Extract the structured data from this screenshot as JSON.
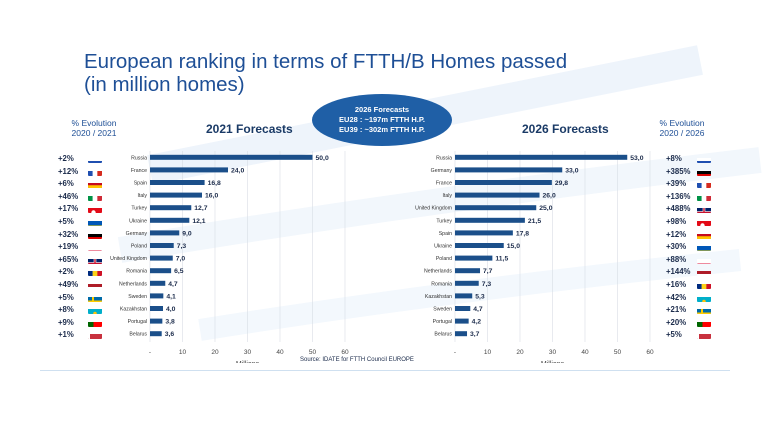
{
  "title_line1": "European ranking in terms of FTTH/B Homes passed",
  "title_line2": "(in million homes)",
  "left_evolution_header": [
    "% Evolution",
    "2020 / 2021"
  ],
  "right_evolution_header": [
    "% Evolution",
    "2020 / 2026"
  ],
  "left_chart_title": "2021 Forecasts",
  "right_chart_title": "2026 Forecasts",
  "bubble": {
    "line1": "2026 Forecasts",
    "line2": "EU28 : ~197m FTTH H.P.",
    "line3": "EU39 : ~302m FTTH H.P."
  },
  "source": "Source: IDATE for FTTH Council EUROPE",
  "left_evolution": [
    {
      "value": "+2%",
      "flag": "ru"
    },
    {
      "value": "+12%",
      "flag": "fr"
    },
    {
      "value": "+6%",
      "flag": "es"
    },
    {
      "value": "+46%",
      "flag": "it"
    },
    {
      "value": "+17%",
      "flag": "tr"
    },
    {
      "value": "+5%",
      "flag": "ua"
    },
    {
      "value": "+32%",
      "flag": "de"
    },
    {
      "value": "+19%",
      "flag": "pl"
    },
    {
      "value": "+65%",
      "flag": "gb"
    },
    {
      "value": "+2%",
      "flag": "ro"
    },
    {
      "value": "+49%",
      "flag": "nl"
    },
    {
      "value": "+5%",
      "flag": "se"
    },
    {
      "value": "+8%",
      "flag": "kz"
    },
    {
      "value": "+9%",
      "flag": "pt"
    },
    {
      "value": "+1%",
      "flag": "by"
    }
  ],
  "right_evolution": [
    {
      "value": "+8%",
      "flag": "ru"
    },
    {
      "value": "+385%",
      "flag": "de"
    },
    {
      "value": "+39%",
      "flag": "fr"
    },
    {
      "value": "+136%",
      "flag": "it"
    },
    {
      "value": "+488%",
      "flag": "gb"
    },
    {
      "value": "+98%",
      "flag": "tr"
    },
    {
      "value": "+12%",
      "flag": "es"
    },
    {
      "value": "+30%",
      "flag": "ua"
    },
    {
      "value": "+88%",
      "flag": "pl"
    },
    {
      "value": "+144%",
      "flag": "nl"
    },
    {
      "value": "+16%",
      "flag": "ro"
    },
    {
      "value": "+42%",
      "flag": "kz"
    },
    {
      "value": "+21%",
      "flag": "se"
    },
    {
      "value": "+20%",
      "flag": "pt"
    },
    {
      "value": "+5%",
      "flag": "by"
    }
  ],
  "flag_colors": {
    "ru": [
      "#ffffff",
      "#1f4fb0",
      "#d52b1e"
    ],
    "fr": [
      "#1f4fb0",
      "#ffffff",
      "#d52b1e"
    ],
    "es": [
      "#c60b1e",
      "#ffc400",
      "#c60b1e"
    ],
    "it": [
      "#009246",
      "#ffffff",
      "#ce2b37"
    ],
    "tr": [
      "#e30a17"
    ],
    "ua": [
      "#0057b7",
      "#ffd700"
    ],
    "de": [
      "#000000",
      "#dd0000",
      "#ffce00"
    ],
    "pl": [
      "#ffffff",
      "#dc143c"
    ],
    "gb": [
      "#012169",
      "#ffffff",
      "#c8102e"
    ],
    "ro": [
      "#002b7f",
      "#fcd116",
      "#ce1126"
    ],
    "nl": [
      "#ae1c28",
      "#ffffff",
      "#21468b"
    ],
    "se": [
      "#006aa7",
      "#fecc00"
    ],
    "kz": [
      "#00afca",
      "#fec50c"
    ],
    "pt": [
      "#006600",
      "#ff0000"
    ],
    "by": [
      "#c8313e",
      "#4aa657"
    ]
  },
  "chart_data": [
    {
      "type": "bar",
      "orientation": "horizontal",
      "title": "2021 Forecasts",
      "categories": [
        "Russia",
        "France",
        "Spain",
        "Italy",
        "Turkey",
        "Ukraine",
        "Germany",
        "Poland",
        "United Kingdom",
        "Romania",
        "Netherlands",
        "Sweden",
        "Kazakhstan",
        "Portugal",
        "Belarus"
      ],
      "values": [
        50.0,
        24.0,
        16.8,
        16.0,
        12.7,
        12.1,
        9.0,
        7.3,
        7.0,
        6.5,
        4.7,
        4.1,
        4.0,
        3.8,
        3.6
      ],
      "value_labels": [
        "50,0",
        "24,0",
        "16,8",
        "16,0",
        "12,7",
        "12,1",
        "9,0",
        "7,3",
        "7,0",
        "6,5",
        "4,7",
        "4,1",
        "4,0",
        "3,8",
        "3,6"
      ],
      "xlabel": "Millions",
      "xlim": [
        0,
        60
      ],
      "xticks": [
        "-",
        "10",
        "20",
        "30",
        "40",
        "50",
        "60"
      ],
      "bar_color": "#1b4f8a",
      "grid": true
    },
    {
      "type": "bar",
      "orientation": "horizontal",
      "title": "2026 Forecasts",
      "categories": [
        "Russia",
        "Germany",
        "France",
        "Italy",
        "United Kingdom",
        "Turkey",
        "Spain",
        "Ukraine",
        "Poland",
        "Netherlands",
        "Romania",
        "Kazakhstan",
        "Sweden",
        "Portugal",
        "Belarus"
      ],
      "values": [
        53.0,
        33.0,
        29.8,
        26.0,
        25.0,
        21.5,
        17.8,
        15.0,
        11.5,
        7.7,
        7.3,
        5.3,
        4.7,
        4.2,
        3.7
      ],
      "value_labels": [
        "53,0",
        "33,0",
        "29,8",
        "26,0",
        "25,0",
        "21,5",
        "17,8",
        "15,0",
        "11,5",
        "7,7",
        "7,3",
        "5,3",
        "4,7",
        "4,2",
        "3,7"
      ],
      "xlabel": "Millions",
      "xlim": [
        0,
        60
      ],
      "xticks": [
        "-",
        "10",
        "20",
        "30",
        "40",
        "50",
        "60"
      ],
      "bar_color": "#1b4f8a",
      "grid": true
    }
  ]
}
